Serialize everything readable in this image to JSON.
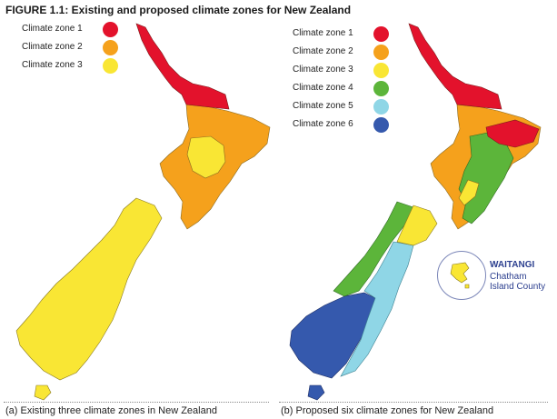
{
  "figure_title": "FIGURE 1.1: Existing and proposed climate zones for New Zealand",
  "panel_a": {
    "caption": "(a) Existing three climate zones in New Zealand",
    "legend": [
      {
        "label": "Climate zone 1",
        "color": "#e3122c"
      },
      {
        "label": "Climate zone 2",
        "color": "#f5a11c"
      },
      {
        "label": "Climate zone 3",
        "color": "#f9e634"
      }
    ]
  },
  "panel_b": {
    "caption": "(b) Proposed six climate zones for New Zealand",
    "legend": [
      {
        "label": "Climate zone 1",
        "color": "#e3122c"
      },
      {
        "label": "Climate zone 2",
        "color": "#f5a11c"
      },
      {
        "label": "Climate zone 3",
        "color": "#f9e634"
      },
      {
        "label": "Climate zone 4",
        "color": "#5cb53a"
      },
      {
        "label": "Climate zone 5",
        "color": "#8fd6e6"
      },
      {
        "label": "Climate zone 6",
        "color": "#3559ad"
      }
    ],
    "inset": {
      "title": "WAITANGI",
      "label": "Chatham Island County"
    }
  }
}
